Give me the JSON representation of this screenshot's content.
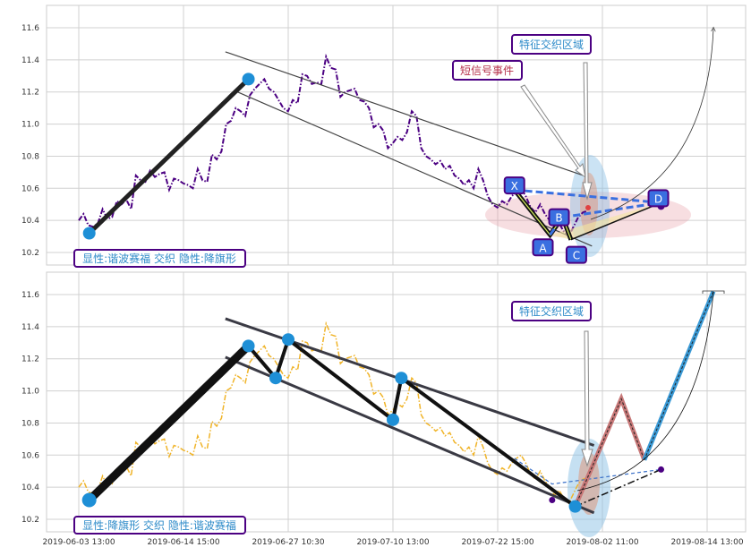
{
  "chart_data": [
    {
      "type": "line",
      "panel": "top",
      "ylim": [
        10.12,
        11.74
      ],
      "yticks": [
        "10.2",
        "10.4",
        "10.6",
        "10.8",
        "11.0",
        "11.2",
        "11.4",
        "11.6"
      ],
      "xticks": [
        "2019-06-03 13:00",
        "2019-06-14 15:00",
        "2019-06-27 10:30",
        "2019-07-10 13:00",
        "2019-07-22 15:00",
        "2019-08-02 11:00",
        "2019-08-14 13:00"
      ],
      "grid": true,
      "price_color": "#4b0082",
      "price": [
        10.4,
        10.44,
        10.37,
        10.36,
        10.38,
        10.47,
        10.41,
        10.42,
        10.52,
        10.5,
        10.53,
        10.47,
        10.68,
        10.65,
        10.64,
        10.71,
        10.67,
        10.69,
        10.7,
        10.59,
        10.66,
        10.65,
        10.63,
        10.62,
        10.6,
        10.72,
        10.65,
        10.64,
        10.81,
        10.78,
        10.83,
        11.0,
        11.02,
        11.1,
        11.08,
        11.05,
        11.18,
        11.22,
        11.25,
        11.28,
        11.22,
        11.2,
        11.15,
        11.1,
        11.08,
        11.15,
        11.13,
        11.31,
        11.3,
        11.25,
        11.26,
        11.25,
        11.42,
        11.35,
        11.34,
        11.17,
        11.2,
        11.21,
        11.22,
        11.15,
        11.14,
        11.1,
        10.98,
        11.0,
        10.96,
        10.85,
        10.88,
        10.92,
        10.9,
        10.95,
        11.08,
        11.05,
        10.85,
        10.8,
        10.78,
        10.75,
        10.77,
        10.72,
        10.74,
        10.68,
        10.66,
        10.62,
        10.65,
        10.6,
        10.72,
        10.65,
        10.55,
        10.5,
        10.48,
        10.52,
        10.5,
        10.55,
        10.58,
        10.6,
        10.55,
        10.48,
        10.45,
        10.5,
        10.44,
        10.4,
        10.35,
        10.38,
        10.33,
        10.3,
        10.36,
        10.42,
        10.45,
        10.46
      ],
      "leg": [
        [
          5,
          10.32
        ],
        [
          81,
          11.28
        ]
      ],
      "channel": {
        "upper": [
          [
            70,
            11.45
          ],
          [
            243,
            10.67
          ]
        ],
        "lower": [
          [
            74,
            11.21
          ],
          [
            245,
            10.24
          ]
        ]
      },
      "harmonic": {
        "X": [
          208,
          10.59
        ],
        "A": [
          225,
          10.31
        ],
        "B": [
          231,
          10.42
        ],
        "C": [
          235,
          10.28
        ],
        "D": [
          278,
          10.51
        ]
      },
      "harmonic_labels": [
        "X",
        "A",
        "B",
        "C",
        "D"
      ],
      "annotations": {
        "zone": "特征交织区域",
        "signal": "短信号事件",
        "legend": "显性:谐波赛福 交织 隐性:降旗形"
      }
    },
    {
      "type": "line",
      "panel": "bottom",
      "ylim": [
        10.12,
        11.74
      ],
      "yticks": [
        "10.2",
        "10.4",
        "10.6",
        "10.8",
        "11.0",
        "11.2",
        "11.4",
        "11.6"
      ],
      "xticks": [
        "2019-06-03 13:00",
        "2019-06-14 15:00",
        "2019-06-27 10:30",
        "2019-07-10 13:00",
        "2019-07-22 15:00",
        "2019-08-02 11:00",
        "2019-08-14 13:00"
      ],
      "grid": true,
      "price_color": "#f0b429",
      "zigzag": [
        [
          5,
          10.32
        ],
        [
          81,
          11.28
        ],
        [
          94,
          11.08
        ],
        [
          100,
          11.32
        ],
        [
          150,
          10.82
        ],
        [
          154,
          11.08
        ],
        [
          237,
          10.28
        ]
      ],
      "projection_up_red": [
        [
          237,
          10.28
        ],
        [
          259,
          10.95
        ],
        [
          270,
          10.57
        ]
      ],
      "projection_up_blue": [
        [
          270,
          10.57
        ],
        [
          303,
          11.62
        ]
      ],
      "channel": {
        "upper": [
          [
            70,
            11.45
          ],
          [
            246,
            10.66
          ]
        ],
        "lower": [
          [
            70,
            11.21
          ],
          [
            246,
            10.24
          ]
        ]
      },
      "harmonic_dashed": [
        [
          208,
          10.58
        ],
        [
          226,
          10.42
        ],
        [
          278,
          10.51
        ]
      ],
      "dots": [
        [
          226,
          10.32
        ],
        [
          278,
          10.51
        ]
      ],
      "dashdot": [
        [
          237,
          10.28
        ],
        [
          278,
          10.51
        ]
      ],
      "annotations": {
        "zone": "特征交织区域",
        "legend": "显性:降旗形 交织 隐性:谐波赛福"
      }
    }
  ]
}
